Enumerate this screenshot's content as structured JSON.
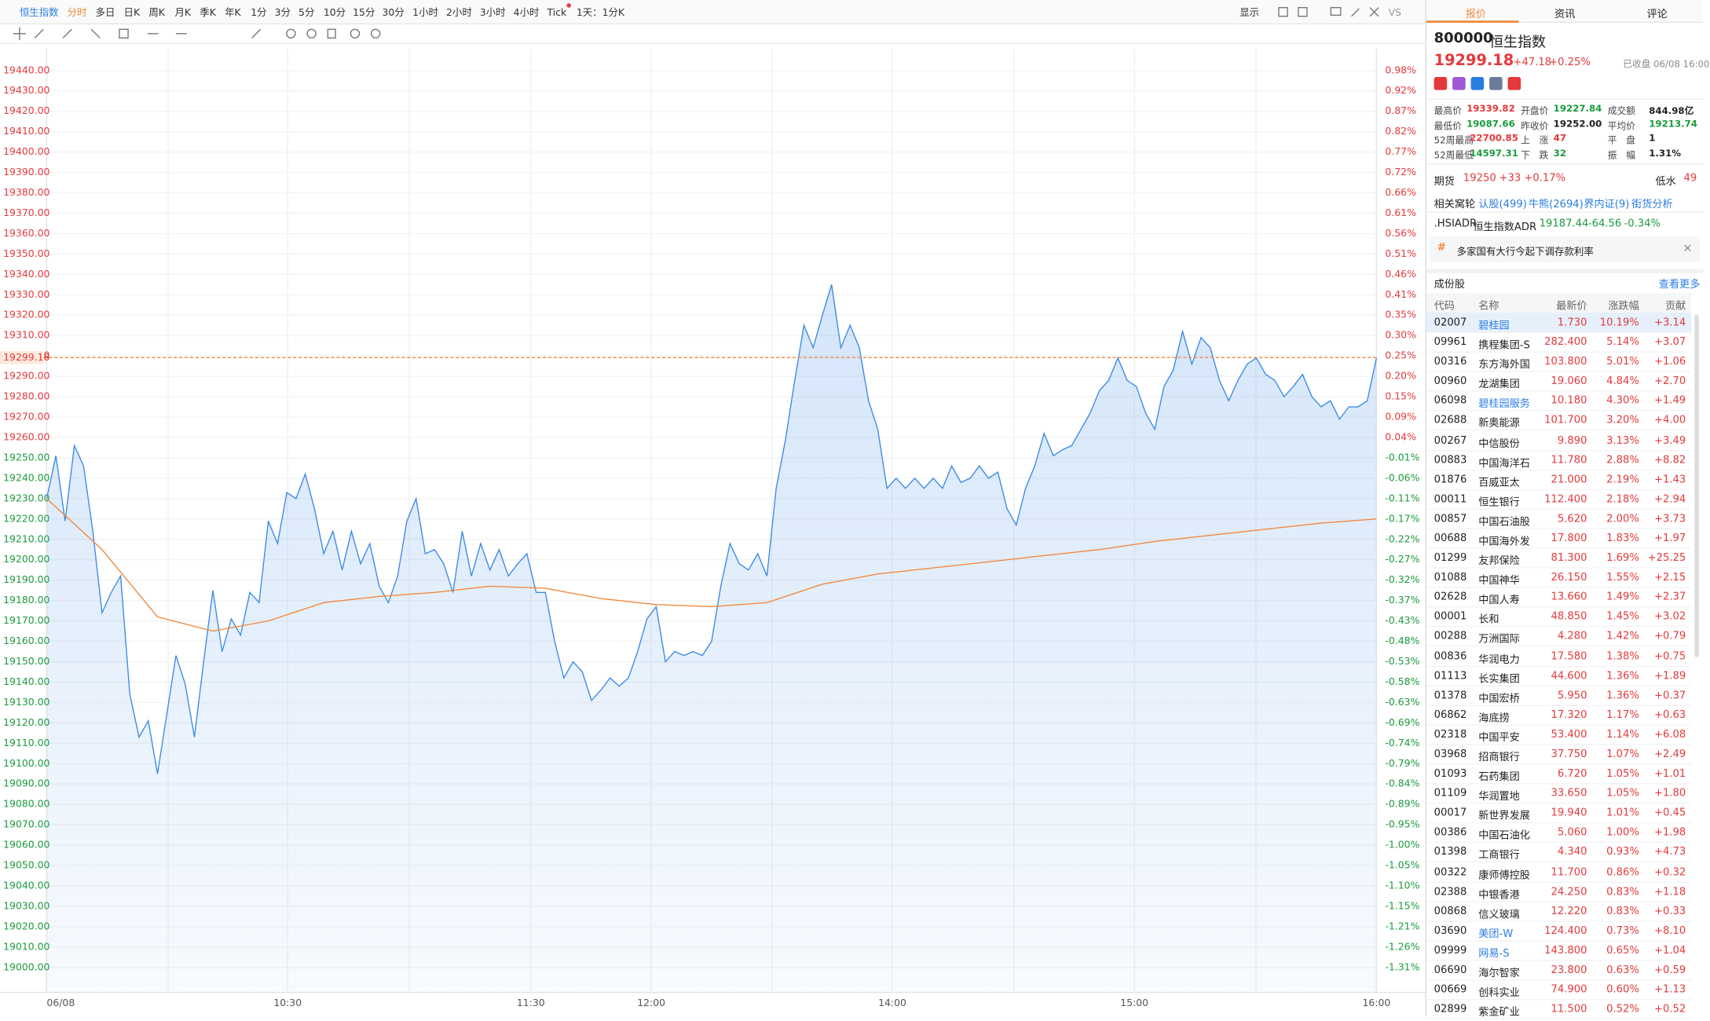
{
  "toolbar": {
    "periods": [
      "恒生指数",
      "分时",
      "多日",
      "日K",
      "周K",
      "月K",
      "季K",
      "年K",
      "1分",
      "3分",
      "5分",
      "10分",
      "15分",
      "30分",
      "1小时",
      "2小时",
      "3小时",
      "4小时",
      "Tick",
      "1天：1分K"
    ],
    "display": "显示",
    "vs": "VS"
  },
  "chart": {
    "type": "line",
    "ylim": [
      19000,
      19440
    ],
    "yticks": [
      "19440.00",
      "19430.00",
      "19420.00",
      "19410.00",
      "19400.00",
      "19390.00",
      "19380.00",
      "19370.00",
      "19360.00",
      "19350.00",
      "19340.00",
      "19330.00",
      "19320.00",
      "19310.00",
      "19300.00",
      "19290.00",
      "19280.00",
      "19270.00",
      "19260.00",
      "19250.00",
      "19240.00",
      "19230.00",
      "19220.00",
      "19210.00",
      "19200.00",
      "19190.00",
      "19180.00",
      "19170.00",
      "19160.00",
      "19150.00",
      "19140.00",
      "19130.00",
      "19120.00",
      "19110.00",
      "19100.00",
      "19090.00",
      "19080.00",
      "19070.00",
      "19060.00",
      "19050.00",
      "19040.00",
      "19030.00",
      "19020.00",
      "19010.00",
      "19000.00"
    ],
    "pct_ticks": [
      "0.98%",
      "0.92%",
      "0.87%",
      "0.82%",
      "0.77%",
      "0.72%",
      "0.66%",
      "0.61%",
      "0.56%",
      "0.51%",
      "0.46%",
      "0.41%",
      "0.35%",
      "0.30%",
      "0.25%",
      "0.20%",
      "0.15%",
      "0.09%",
      "0.04%",
      "-0.01%",
      "-0.06%",
      "-0.11%",
      "-0.17%",
      "-0.22%",
      "-0.27%",
      "-0.32%",
      "-0.37%",
      "-0.43%",
      "-0.48%",
      "-0.53%",
      "-0.58%",
      "-0.63%",
      "-0.69%",
      "-0.74%",
      "-0.79%",
      "-0.84%",
      "-0.89%",
      "-0.95%",
      "-1.00%",
      "-1.05%",
      "-1.10%",
      "-1.15%",
      "-1.21%",
      "-1.26%",
      "-1.31%"
    ],
    "x_labels": [
      "06/08",
      "10:30",
      "11:30",
      "12:00",
      "14:00",
      "15:00",
      "16:00"
    ],
    "current_price_label": "19299.18",
    "current_price": 19299.18,
    "price_color": "#3d8be8",
    "average_color": "#f08a3c",
    "price_values": [
      19230,
      19251,
      19219,
      19256,
      19246,
      19214,
      19174,
      19184,
      19192,
      19134,
      19113,
      19121,
      19095,
      19124,
      19153,
      19139,
      19113,
      19150,
      19185,
      19155,
      19171,
      19163,
      19184,
      19179,
      19219,
      19208,
      19233,
      19230,
      19242,
      19225,
      19203,
      19214,
      19195,
      19214,
      19198,
      19208,
      19187,
      19179,
      19192,
      19219,
      19230,
      19203,
      19205,
      19198,
      19184,
      19214,
      19192,
      19208,
      19195,
      19205,
      19192,
      19198,
      19203,
      19184,
      19184,
      19160,
      19142,
      19150,
      19145,
      19131,
      19136,
      19142,
      19138,
      19142,
      19155,
      19171,
      19177,
      19150,
      19155,
      19153,
      19155,
      19153,
      19160,
      19187,
      19208,
      19198,
      19195,
      19203,
      19192,
      19235,
      19259,
      19288,
      19315,
      19304,
      19320,
      19335,
      19304,
      19315,
      19304,
      19278,
      19264,
      19235,
      19240,
      19235,
      19240,
      19235,
      19240,
      19235,
      19246,
      19238,
      19240,
      19246,
      19240,
      19243,
      19225,
      19217,
      19235,
      19246,
      19262,
      19251,
      19254,
      19256,
      19264,
      19272,
      19283,
      19288,
      19299,
      19288,
      19285,
      19272,
      19264,
      19285,
      19293,
      19312,
      19296,
      19309,
      19304,
      19288,
      19278,
      19288,
      19296,
      19299,
      19291,
      19288,
      19280,
      19285,
      19291,
      19280,
      19275,
      19278,
      19269,
      19275,
      19275,
      19278,
      19299
    ],
    "average_values": [
      19230,
      19205,
      19172,
      19165,
      19170,
      19179,
      19182,
      19184,
      19187,
      19186,
      19181,
      19178,
      19177,
      19179,
      19188,
      19193,
      19196,
      19199,
      19202,
      19205,
      19209,
      19212,
      19215,
      19218,
      19220
    ]
  },
  "panel": {
    "tabs": [
      "报价",
      "资讯",
      "评论"
    ],
    "code": "800000",
    "name": "恒生指数",
    "price": "19299.18",
    "change": "+47.18",
    "pct": "+0.25%",
    "status": "已收盘 06/08 16:00",
    "stats": [
      [
        {
          "label": "最高价",
          "value": "19339.82",
          "color": "#e4393c"
        },
        {
          "label": "开盘价",
          "value": "19227.84",
          "color": "#1a9b3c"
        },
        {
          "label": "成交额",
          "value": "844.98亿",
          "color": "#222"
        }
      ],
      [
        {
          "label": "最低价",
          "value": "19087.66",
          "color": "#1a9b3c"
        },
        {
          "label": "昨收价",
          "value": "19252.00",
          "color": "#222"
        },
        {
          "label": "平均价",
          "value": "19213.74",
          "color": "#1a9b3c"
        }
      ],
      [
        {
          "label": "52周最高",
          "value": "22700.85",
          "color": "#e4393c"
        },
        {
          "label": "上　涨",
          "value": "47",
          "color": "#e4393c"
        },
        {
          "label": "平　盘",
          "value": "1",
          "color": "#222"
        }
      ],
      [
        {
          "label": "52周最低",
          "value": "14597.31",
          "color": "#1a9b3c"
        },
        {
          "label": "下　跌",
          "value": "32",
          "color": "#1a9b3c"
        },
        {
          "label": "振　幅",
          "value": "1.31%",
          "color": "#222"
        }
      ]
    ],
    "futures": {
      "label": "期货",
      "price": "19250",
      "change": "+33",
      "pct": "+0.17%",
      "basis_label": "低水",
      "basis": "49"
    },
    "warrants": {
      "label": "相关窝轮",
      "links": [
        "认股(499)",
        "牛熊(2694)",
        "界内证(9)",
        "街货分析"
      ]
    },
    "adr": {
      "code": ".HSIADR",
      "name": "恒生指数ADR",
      "price": "19187.44",
      "change": "-64.56",
      "pct": "-0.34%"
    },
    "news": "多家国有大行今起下调存款利率",
    "constituents": {
      "title": "成份股",
      "more": "查看更多",
      "headers": [
        "代码",
        "名称",
        "最新价",
        "涨跌幅",
        "贡献"
      ],
      "rows": [
        {
          "code": "02007",
          "name": "碧桂园",
          "price": "1.730",
          "pct": "10.19%",
          "contrib": "+3.14",
          "link": true
        },
        {
          "code": "09961",
          "name": "携程集团-S",
          "price": "282.400",
          "pct": "5.14%",
          "contrib": "+3.07",
          "link": false
        },
        {
          "code": "00316",
          "name": "东方海外国",
          "price": "103.800",
          "pct": "5.01%",
          "contrib": "+1.06",
          "link": false
        },
        {
          "code": "00960",
          "name": "龙湖集团",
          "price": "19.060",
          "pct": "4.84%",
          "contrib": "+2.70",
          "link": false
        },
        {
          "code": "06098",
          "name": "碧桂园服务",
          "price": "10.180",
          "pct": "4.30%",
          "contrib": "+1.49",
          "link": true
        },
        {
          "code": "02688",
          "name": "新奥能源",
          "price": "101.700",
          "pct": "3.20%",
          "contrib": "+4.00",
          "link": false
        },
        {
          "code": "00267",
          "name": "中信股份",
          "price": "9.890",
          "pct": "3.13%",
          "contrib": "+3.49",
          "link": false
        },
        {
          "code": "00883",
          "name": "中国海洋石",
          "price": "11.780",
          "pct": "2.88%",
          "contrib": "+8.82",
          "link": false
        },
        {
          "code": "01876",
          "name": "百威亚太",
          "price": "21.000",
          "pct": "2.19%",
          "contrib": "+1.43",
          "link": false
        },
        {
          "code": "00011",
          "name": "恒生银行",
          "price": "112.400",
          "pct": "2.18%",
          "contrib": "+2.94",
          "link": false
        },
        {
          "code": "00857",
          "name": "中国石油股",
          "price": "5.620",
          "pct": "2.00%",
          "contrib": "+3.73",
          "link": false
        },
        {
          "code": "00688",
          "name": "中国海外发",
          "price": "17.800",
          "pct": "1.83%",
          "contrib": "+1.97",
          "link": false
        },
        {
          "code": "01299",
          "name": "友邦保险",
          "price": "81.300",
          "pct": "1.69%",
          "contrib": "+25.25",
          "link": false
        },
        {
          "code": "01088",
          "name": "中国神华",
          "price": "26.150",
          "pct": "1.55%",
          "contrib": "+2.15",
          "link": false
        },
        {
          "code": "02628",
          "name": "中国人寿",
          "price": "13.660",
          "pct": "1.49%",
          "contrib": "+2.37",
          "link": false
        },
        {
          "code": "00001",
          "name": "长和",
          "price": "48.850",
          "pct": "1.45%",
          "contrib": "+3.02",
          "link": false
        },
        {
          "code": "00288",
          "name": "万洲国际",
          "price": "4.280",
          "pct": "1.42%",
          "contrib": "+0.79",
          "link": false
        },
        {
          "code": "00836",
          "name": "华润电力",
          "price": "17.580",
          "pct": "1.38%",
          "contrib": "+0.75",
          "link": false
        },
        {
          "code": "01113",
          "name": "长实集团",
          "price": "44.600",
          "pct": "1.36%",
          "contrib": "+1.89",
          "link": false
        },
        {
          "code": "01378",
          "name": "中国宏桥",
          "price": "5.950",
          "pct": "1.36%",
          "contrib": "+0.37",
          "link": false
        },
        {
          "code": "06862",
          "name": "海底捞",
          "price": "17.320",
          "pct": "1.17%",
          "contrib": "+0.63",
          "link": false
        },
        {
          "code": "02318",
          "name": "中国平安",
          "price": "53.400",
          "pct": "1.14%",
          "contrib": "+6.08",
          "link": false
        },
        {
          "code": "03968",
          "name": "招商银行",
          "price": "37.750",
          "pct": "1.07%",
          "contrib": "+2.49",
          "link": false
        },
        {
          "code": "01093",
          "name": "石药集团",
          "price": "6.720",
          "pct": "1.05%",
          "contrib": "+1.01",
          "link": false
        },
        {
          "code": "01109",
          "name": "华润置地",
          "price": "33.650",
          "pct": "1.05%",
          "contrib": "+1.80",
          "link": false
        },
        {
          "code": "00017",
          "name": "新世界发展",
          "price": "19.940",
          "pct": "1.01%",
          "contrib": "+0.45",
          "link": false
        },
        {
          "code": "00386",
          "name": "中国石油化",
          "price": "5.060",
          "pct": "1.00%",
          "contrib": "+1.98",
          "link": false
        },
        {
          "code": "01398",
          "name": "工商银行",
          "price": "4.340",
          "pct": "0.93%",
          "contrib": "+4.73",
          "link": false
        },
        {
          "code": "00322",
          "name": "康师傅控股",
          "price": "11.700",
          "pct": "0.86%",
          "contrib": "+0.32",
          "link": false
        },
        {
          "code": "02388",
          "name": "中银香港",
          "price": "24.250",
          "pct": "0.83%",
          "contrib": "+1.18",
          "link": false
        },
        {
          "code": "00868",
          "name": "信义玻璃",
          "price": "12.220",
          "pct": "0.83%",
          "contrib": "+0.33",
          "link": false
        },
        {
          "code": "03690",
          "name": "美团-W",
          "price": "124.400",
          "pct": "0.73%",
          "contrib": "+8.10",
          "link": true
        },
        {
          "code": "09999",
          "name": "网易-S",
          "price": "143.800",
          "pct": "0.65%",
          "contrib": "+1.04",
          "link": true
        },
        {
          "code": "06690",
          "name": "海尔智家",
          "price": "23.800",
          "pct": "0.63%",
          "contrib": "+0.59",
          "link": false
        },
        {
          "code": "00669",
          "name": "创科实业",
          "price": "74.900",
          "pct": "0.60%",
          "contrib": "+1.13",
          "link": false
        },
        {
          "code": "02899",
          "name": "紫金矿业",
          "price": "11.500",
          "pct": "0.52%",
          "contrib": "+0.52",
          "link": false
        }
      ]
    }
  }
}
